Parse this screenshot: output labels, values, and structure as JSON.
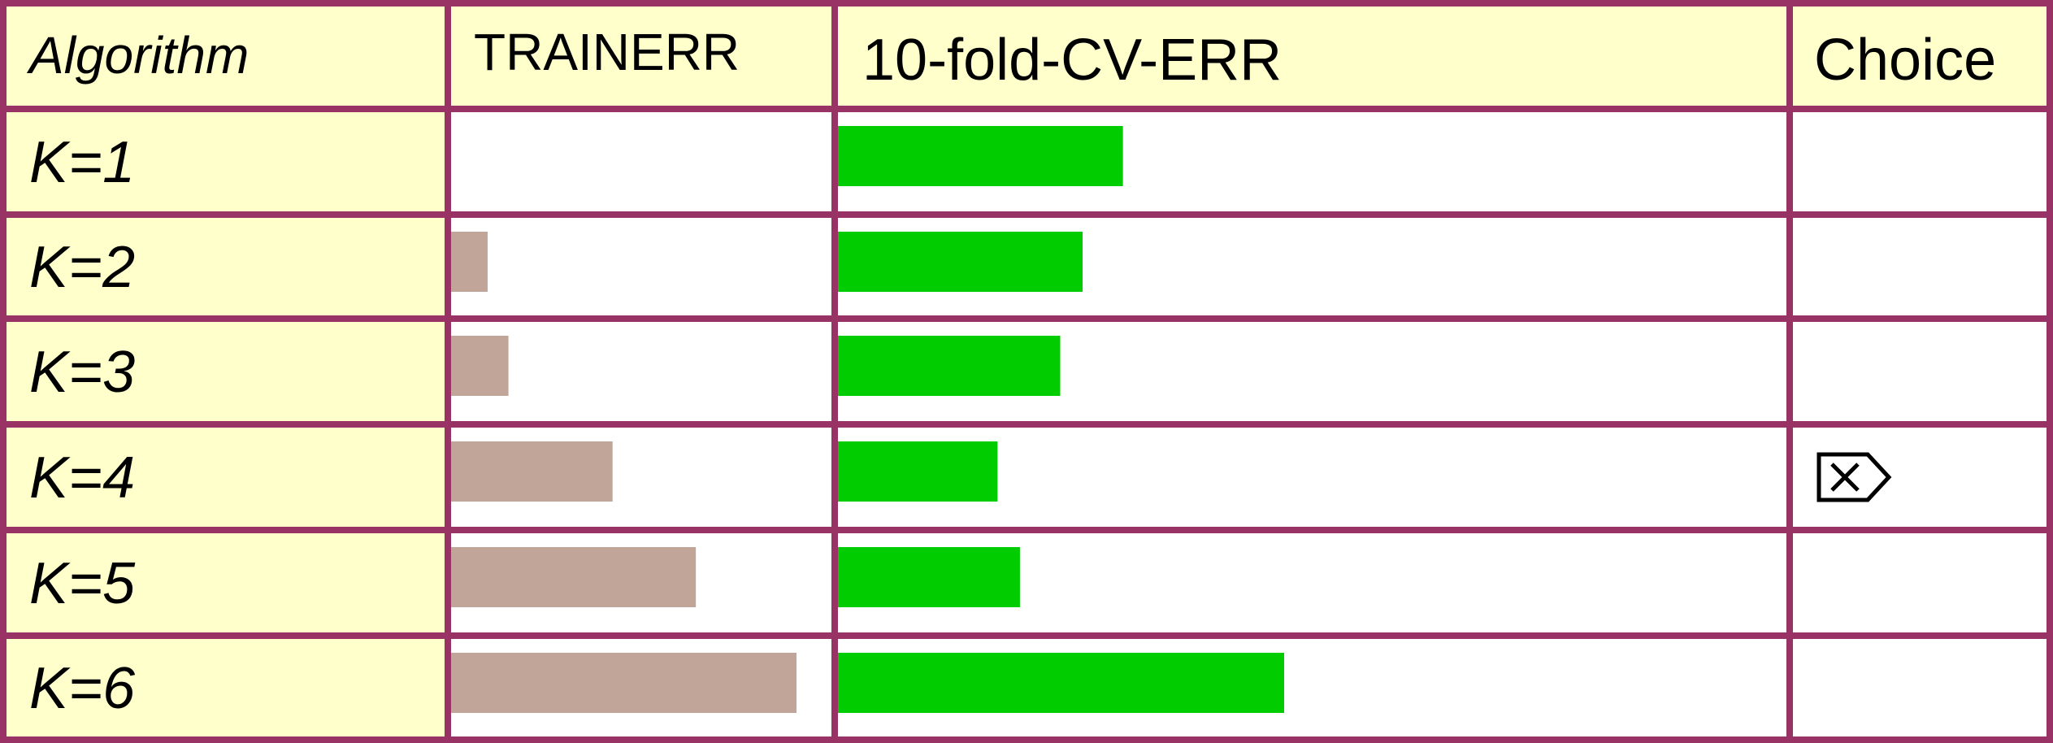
{
  "table": {
    "headers": {
      "algorithm": "Algorithm",
      "train": "TRAINERR",
      "cv": "10-fold-CV-ERR",
      "choice": "Choice"
    }
  },
  "colors": {
    "border": "#993366",
    "header_bg": "#ffffcc",
    "train_bar": "#c2a599",
    "cv_bar": "#00cc00",
    "cell_bg": "#ffffff"
  },
  "chart_data": {
    "type": "table",
    "rows": [
      "K=1",
      "K=2",
      "K=3",
      "K=4",
      "K=5",
      "K=6"
    ],
    "series": [
      {
        "name": "TRAINERR",
        "values": [
          0.0,
          0.11,
          0.17,
          0.47,
          0.71,
          1.0
        ]
      },
      {
        "name": "10-fold-CV-ERR",
        "values": [
          0.64,
          0.55,
          0.5,
          0.36,
          0.41,
          1.0
        ]
      }
    ],
    "choice": [
      "",
      "",
      "",
      "checked-box-icon",
      "",
      ""
    ]
  }
}
